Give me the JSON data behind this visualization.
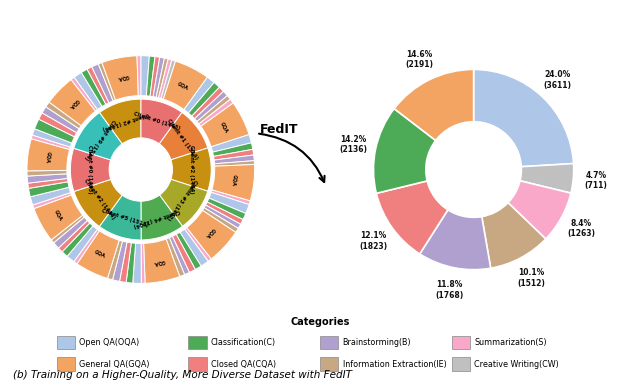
{
  "category_colors": {
    "OQA": "#aec6e8",
    "GQA": "#f4a462",
    "C": "#4daa57",
    "CQA": "#f08080",
    "B": "#b0a0d0",
    "IE": "#c8a882",
    "S": "#f9a8c9",
    "CW": "#c0c0c0"
  },
  "client_colors": [
    "#e87070",
    "#e8803a",
    "#c89010",
    "#a8a828",
    "#50aa50",
    "#3ab898",
    "#4898d0",
    "#9878c8",
    "#d868b0",
    "#38c0b8"
  ],
  "clients": [
    {
      "name": "Client #0\n(1493)",
      "id": 0,
      "count": 1493,
      "cat_segs": [
        {
          "cat": "OQA",
          "val": 180
        },
        {
          "cat": "C",
          "val": 120
        },
        {
          "cat": "CQA",
          "val": 100
        },
        {
          "cat": "B",
          "val": 100
        },
        {
          "cat": "IE",
          "val": 80
        },
        {
          "cat": "S",
          "val": 80
        },
        {
          "cat": "CW",
          "val": 80
        },
        {
          "cat": "GQA",
          "val": 753
        }
      ]
    },
    {
      "name": "Client #1\n(1514)",
      "id": 1,
      "count": 1514,
      "cat_segs": [
        {
          "cat": "OQA",
          "val": 180
        },
        {
          "cat": "C",
          "val": 150
        },
        {
          "cat": "CQA",
          "val": 120
        },
        {
          "cat": "B",
          "val": 120
        },
        {
          "cat": "IE",
          "val": 100
        },
        {
          "cat": "S",
          "val": 100
        },
        {
          "cat": "GQA",
          "val": 744
        }
      ]
    },
    {
      "name": "Client #2\n(1494)",
      "id": 2,
      "count": 1494,
      "cat_segs": [
        {
          "cat": "OQA",
          "val": 180
        },
        {
          "cat": "C",
          "val": 140
        },
        {
          "cat": "CQA",
          "val": 120
        },
        {
          "cat": "B",
          "val": 120
        },
        {
          "cat": "IE",
          "val": 80
        },
        {
          "cat": "GQA",
          "val": 774
        },
        {
          "cat": "S",
          "val": 80
        }
      ]
    },
    {
      "name": "Client #3\n(1492)",
      "id": 3,
      "count": 1492,
      "cat_segs": [
        {
          "cat": "OQA",
          "val": 200
        },
        {
          "cat": "C",
          "val": 140
        },
        {
          "cat": "CQA",
          "val": 110
        },
        {
          "cat": "B",
          "val": 100
        },
        {
          "cat": "IE",
          "val": 100
        },
        {
          "cat": "GQA",
          "val": 762
        },
        {
          "cat": "S",
          "val": 80
        }
      ]
    },
    {
      "name": "Client #4\n(1504)",
      "id": 4,
      "count": 1504,
      "cat_segs": [
        {
          "cat": "OQA",
          "val": 180
        },
        {
          "cat": "C",
          "val": 140
        },
        {
          "cat": "CQA",
          "val": 140
        },
        {
          "cat": "B",
          "val": 110
        },
        {
          "cat": "IE",
          "val": 110
        },
        {
          "cat": "GQA",
          "val": 744
        },
        {
          "cat": "S",
          "val": 80
        }
      ]
    },
    {
      "name": "Client #5\n(1513)",
      "id": 5,
      "count": 1513,
      "cat_segs": [
        {
          "cat": "OQA",
          "val": 180
        },
        {
          "cat": "C",
          "val": 140
        },
        {
          "cat": "CQA",
          "val": 140
        },
        {
          "cat": "B",
          "val": 150
        },
        {
          "cat": "IE",
          "val": 110
        },
        {
          "cat": "GQA",
          "val": 713
        },
        {
          "cat": "S",
          "val": 80
        }
      ]
    },
    {
      "name": "Client #2\n(1494)",
      "id": 2,
      "count": 1494,
      "cat_segs": [
        {
          "cat": "OQA",
          "val": 180
        },
        {
          "cat": "C",
          "val": 140
        },
        {
          "cat": "CQA",
          "val": 110
        },
        {
          "cat": "B",
          "val": 150
        },
        {
          "cat": "IE",
          "val": 80
        },
        {
          "cat": "GQA",
          "val": 754
        },
        {
          "cat": "S",
          "val": 80
        }
      ]
    },
    {
      "name": "Client #0\n(1493)",
      "id": 0,
      "count": 1493,
      "cat_segs": [
        {
          "cat": "OQA",
          "val": 180
        },
        {
          "cat": "C",
          "val": 180
        },
        {
          "cat": "CQA",
          "val": 110
        },
        {
          "cat": "B",
          "val": 150
        },
        {
          "cat": "IE",
          "val": 110
        },
        {
          "cat": "GQA",
          "val": 683
        },
        {
          "cat": "S",
          "val": 80
        }
      ]
    },
    {
      "name": "Client #9\n(1524)",
      "id": 9,
      "count": 1524,
      "cat_segs": [
        {
          "cat": "OQA",
          "val": 140
        },
        {
          "cat": "C",
          "val": 220
        },
        {
          "cat": "CQA",
          "val": 150
        },
        {
          "cat": "B",
          "val": 150
        },
        {
          "cat": "IE",
          "val": 120
        },
        {
          "cat": "GQA",
          "val": 664
        },
        {
          "cat": "S",
          "val": 80
        }
      ]
    },
    {
      "name": "Client #2\n(1494)",
      "id": 2,
      "count": 1494,
      "cat_segs": [
        {
          "cat": "OQA",
          "val": 180
        },
        {
          "cat": "C",
          "val": 140
        },
        {
          "cat": "CQA",
          "val": 110
        },
        {
          "cat": "B",
          "val": 150
        },
        {
          "cat": "IE",
          "val": 80
        },
        {
          "cat": "GQA",
          "val": 754
        },
        {
          "cat": "S",
          "val": 80
        }
      ]
    }
  ],
  "right_donut": {
    "labels": [
      "OQA",
      "CW",
      "S",
      "IE",
      "B",
      "CQA",
      "C",
      "GQA"
    ],
    "values": [
      3611,
      711,
      1263,
      1512,
      1768,
      1823,
      2136,
      2191
    ],
    "percents": [
      "24.0%",
      "4.7%",
      "8.4%",
      "10.1%",
      "11.8%",
      "12.1%",
      "14.2%",
      "14.6%"
    ],
    "counts": [
      "(3611)",
      "(711)",
      "(1263)",
      "(1512)",
      "(1768)",
      "(1823)",
      "(2136)",
      "(2191)"
    ],
    "colors": [
      "#aec6e8",
      "#c0c0c0",
      "#f9a8c9",
      "#c8a882",
      "#b0a0d0",
      "#f08080",
      "#4daa57",
      "#f4a462"
    ]
  },
  "legend_items": [
    {
      "label": "Open QA(OQA)",
      "color": "#aec6e8"
    },
    {
      "label": "Classification(C)",
      "color": "#4daa57"
    },
    {
      "label": "Brainstorming(B)",
      "color": "#b0a0d0"
    },
    {
      "label": "Summarization(S)",
      "color": "#f9a8c9"
    },
    {
      "label": "General QA(GQA)",
      "color": "#f4a462"
    },
    {
      "label": "Closed QA(CQA)",
      "color": "#f08080"
    },
    {
      "label": "Information Extraction(IE)",
      "color": "#c8a882"
    },
    {
      "label": "Creative Writing(CW)",
      "color": "#c0c0c0"
    }
  ],
  "arrow_text": "FedIT",
  "caption": "(b) Training on a Higher-Quality, More Diverse Dataset with FedIT",
  "legend_title": "Categories"
}
